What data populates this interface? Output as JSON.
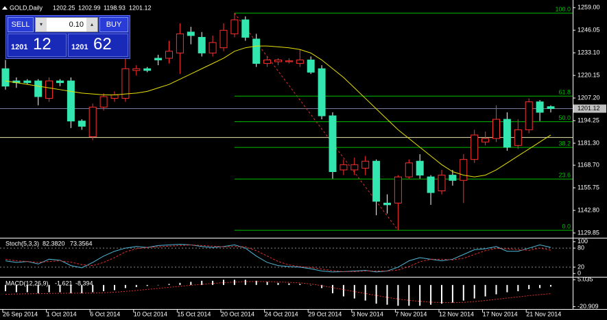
{
  "trade_panel": {
    "sell": "SELL",
    "buy": "BUY",
    "lot": "0.10",
    "sell_price": {
      "prefix": "1201",
      "pips": "12"
    },
    "buy_price": {
      "prefix": "1201",
      "pips": "62"
    }
  },
  "chart_data": [
    {
      "type": "candlestick",
      "symbol": "GOLD,Daily",
      "ohlc_header": [
        1202.25,
        1202.99,
        1198.93,
        1201.12
      ],
      "categories": [
        "26 Sep 2014",
        null,
        null,
        null,
        "1 Oct 2014",
        null,
        null,
        null,
        "6 Oct 2014",
        null,
        null,
        null,
        "10 Oct 2014",
        null,
        null,
        null,
        "15 Oct 2014",
        null,
        null,
        null,
        "20 Oct 2014",
        null,
        null,
        null,
        "24 Oct 2014",
        null,
        null,
        null,
        "29 Oct 2014",
        null,
        null,
        null,
        "3 Nov 2014",
        null,
        null,
        null,
        "7 Nov 2014",
        null,
        null,
        null,
        "12 Nov 2014",
        null,
        null,
        null,
        "17 Nov 2014",
        null,
        null,
        null,
        "21 Nov 2014",
        null,
        null
      ],
      "open": [
        1224,
        1217,
        1217,
        1217,
        1207,
        1217,
        1217,
        1194,
        1185,
        1202,
        1207,
        1207,
        1223,
        1224,
        1230,
        1230,
        1233,
        1245,
        1242,
        1233,
        1236,
        1244,
        1252,
        1241,
        1227,
        1228,
        1228,
        1227,
        1229,
        1224,
        1197,
        1166,
        1166,
        1167,
        1171,
        1147,
        1147,
        1162,
        1171,
        1162,
        1154,
        1163,
        1160,
        1172,
        1182,
        1184,
        1195,
        1180,
        1189,
        1205,
        1202.25
      ],
      "high": [
        1229,
        1219,
        1218,
        1218,
        1219,
        1218,
        1219,
        1195,
        1204,
        1210,
        1211,
        1230,
        1226,
        1225,
        1232,
        1240,
        1250,
        1248,
        1245,
        1243,
        1250,
        1255.85,
        1254,
        1244,
        1231,
        1230,
        1230,
        1235,
        1231,
        1226,
        1199,
        1172,
        1173,
        1174,
        1172,
        1152,
        1163,
        1172,
        1175,
        1163,
        1166,
        1166,
        1175,
        1189,
        1188,
        1203,
        1199,
        1195,
        1207,
        1206,
        1202.99
      ],
      "low": [
        1212,
        1213,
        1215,
        1203,
        1205,
        1214,
        1190,
        1189,
        1183,
        1200,
        1205,
        1205,
        1220,
        1222,
        1226,
        1227,
        1221,
        1238,
        1231,
        1231,
        1234,
        1242,
        1240,
        1225,
        1225,
        1226,
        1227,
        1225,
        1221,
        1195,
        1161,
        1163,
        1163,
        1163,
        1140,
        1141,
        1131.4,
        1161,
        1161,
        1146,
        1152,
        1157,
        1147,
        1170,
        1180,
        1182,
        1177,
        1178,
        1187,
        1194,
        1198.93
      ],
      "close": [
        1214,
        1216,
        1216,
        1208,
        1217,
        1216,
        1194,
        1191,
        1202,
        1208,
        1209,
        1224,
        1224,
        1223,
        1229,
        1234,
        1244,
        1243,
        1233,
        1239,
        1246,
        1252,
        1242,
        1227,
        1229,
        1229,
        1228.5,
        1229,
        1222,
        1197,
        1165,
        1169,
        1169,
        1171,
        1148,
        1146,
        1162,
        1170,
        1163,
        1153,
        1163,
        1160,
        1172,
        1186,
        1184,
        1195,
        1179,
        1189,
        1205,
        1199,
        1201.12
      ],
      "up_color": "#ff3030",
      "down_color": "#33e6b0",
      "ma": {
        "color": "#e8e000",
        "values": [
          1217,
          1216,
          1215,
          1214,
          1213,
          1212,
          1211,
          1210,
          1209.5,
          1209,
          1209,
          1209.5,
          1210,
          1211,
          1213,
          1215,
          1218,
          1221,
          1224,
          1227,
          1230,
          1234,
          1236,
          1237,
          1237,
          1236.5,
          1236,
          1235,
          1233,
          1229,
          1224,
          1219,
          1213,
          1207,
          1201,
          1195,
          1189,
          1184,
          1179,
          1174,
          1169,
          1165,
          1163,
          1162,
          1163,
          1166,
          1170,
          1174,
          1178,
          1182,
          1186
        ]
      },
      "bid": 1201.12,
      "hline": 1184.6,
      "fib": {
        "color": "#00c000",
        "levels": [
          "100.0",
          "61.8",
          "50.0",
          "38.2",
          "23.6",
          "0.0"
        ],
        "prices": [
          1255.85,
          1208.3,
          1193.6,
          1178.9,
          1160.8,
          1131.4
        ],
        "from_index": 21,
        "to_index": 36
      },
      "ylim": [
        1127.5,
        1261.8
      ],
      "yticks": [
        {
          "value": 1259,
          "label": "1259.00"
        },
        1246.05,
        {
          "value": 1233.1,
          "label": "1233.10"
        },
        1220.15,
        {
          "value": 1207.2,
          "label": "1207.20"
        },
        1194.25,
        {
          "value": 1181.3,
          "label": "1181.30"
        },
        {
          "value": 1168.7,
          "label": "1168.70"
        },
        1155.75,
        {
          "value": 1142.8,
          "label": "1142.80"
        },
        1129.85
      ]
    },
    {
      "type": "line",
      "name": "Stoch(5,3,3)",
      "header_values": [
        82.382,
        73.3564
      ],
      "header_value_labels": [
        "82.3820",
        "73.3564"
      ],
      "series": [
        {
          "color": "#4fb8d8",
          "dash": false,
          "values": [
            40,
            35,
            38,
            30,
            45,
            42,
            25,
            18,
            35,
            55,
            70,
            80,
            85,
            82,
            88,
            90,
            92,
            90,
            85,
            82,
            85,
            90,
            80,
            55,
            35,
            25,
            22,
            20,
            15,
            8,
            5,
            6,
            8,
            10,
            5,
            8,
            20,
            40,
            50,
            45,
            40,
            45,
            60,
            75,
            78,
            85,
            70,
            70,
            80,
            90,
            82.382
          ]
        },
        {
          "color": "#e03030",
          "dash": true,
          "values": [
            45,
            40,
            38,
            35,
            38,
            40,
            36,
            28,
            25,
            35,
            50,
            68,
            78,
            82,
            84,
            86,
            88,
            90,
            88,
            86,
            84,
            85,
            84,
            72,
            55,
            38,
            27,
            22,
            19,
            14,
            9,
            6,
            6,
            8,
            8,
            8,
            11,
            22,
            37,
            45,
            45,
            43,
            48,
            60,
            72,
            79,
            78,
            75,
            73,
            80,
            73.3564
          ]
        }
      ],
      "ylim": [
        -6,
        106
      ],
      "yticks": [
        100,
        80,
        20,
        0
      ],
      "dashed_levels": [
        80,
        20
      ]
    },
    {
      "type": "macd",
      "name": "MACD(12,26,9)",
      "header_values": [
        -1.621,
        -8.394
      ],
      "histogram": {
        "color": "#ffffff",
        "values": [
          -6,
          -7,
          -7,
          -8,
          -7,
          -7,
          -8,
          -8,
          -7,
          -6,
          -5,
          -3,
          -2,
          -1,
          0,
          1,
          2,
          3,
          4,
          4,
          5,
          5,
          5,
          4,
          3,
          2,
          1.5,
          1,
          0,
          -3,
          -8,
          -11,
          -13,
          -15,
          -18,
          -19,
          -20,
          -20,
          -20,
          -19,
          -18,
          -17,
          -15,
          -13,
          -11,
          -9,
          -7,
          -6,
          -4,
          -3,
          -1.621
        ]
      },
      "signal": {
        "color": "#e03030",
        "values": [
          -9,
          -8.7,
          -8.5,
          -8.4,
          -8.2,
          -8,
          -7.9,
          -7.9,
          -7.8,
          -7.5,
          -7,
          -6.2,
          -5.3,
          -4.3,
          -3.3,
          -2.3,
          -1.3,
          -0.3,
          0.6,
          1.5,
          2.2,
          2.8,
          3.2,
          3.3,
          3.2,
          2.9,
          2.5,
          2,
          1,
          -0.7,
          -2.6,
          -4.5,
          -6.4,
          -8.2,
          -10.1,
          -11.9,
          -13.5,
          -14.8,
          -15.8,
          -16.5,
          -16.9,
          -17,
          -16.7,
          -16,
          -15,
          -13.8,
          -12.6,
          -11.5,
          -10.3,
          -9.3,
          -8.394
        ]
      },
      "ylim": [
        -22.5,
        6.5
      ],
      "yticks": [
        5.035,
        -20.909
      ]
    }
  ]
}
